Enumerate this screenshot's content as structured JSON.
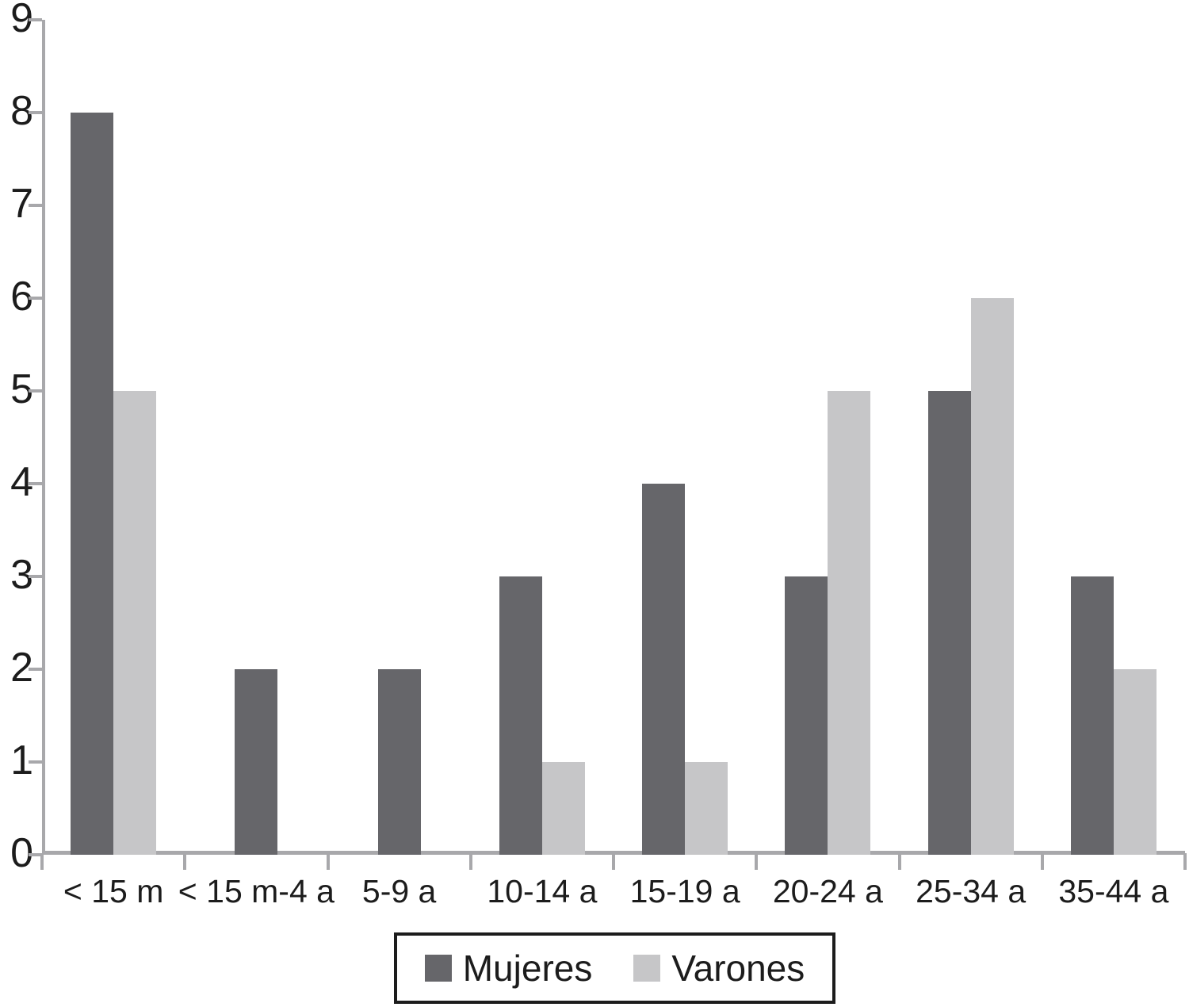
{
  "chart_data": {
    "type": "bar",
    "title": "",
    "xlabel": "",
    "ylabel": "",
    "categories": [
      "< 15 m",
      "< 15 m-4 a",
      "5-9 a",
      "10-14 a",
      "15-19 a",
      "20-24 a",
      "25-34 a",
      "35-44 a"
    ],
    "series": [
      {
        "name": "Mujeres",
        "color": "#66666a",
        "values": [
          8,
          2,
          2,
          3,
          4,
          3,
          5,
          3
        ]
      },
      {
        "name": "Varones",
        "color": "#c6c6c8",
        "values": [
          5,
          0,
          0,
          1,
          1,
          5,
          6,
          2
        ]
      }
    ],
    "ylim": [
      0,
      9
    ],
    "yticks": [
      0,
      1,
      2,
      3,
      4,
      5,
      6,
      7,
      8,
      9
    ],
    "grid": false,
    "legend_position": "bottom-center",
    "axis_color": "#a8a8ab",
    "text_color": "#1c1c1c",
    "legend_border_color": "#1c1c1c"
  }
}
